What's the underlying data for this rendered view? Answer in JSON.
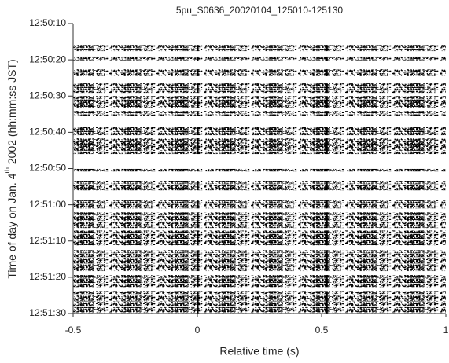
{
  "chart_data": {
    "type": "raster",
    "title": "5pu_S0636_20020104_125010-125130",
    "x_label": "Relative time (s)",
    "y_label": {
      "before": "Time of day on Jan. 4",
      "sup": "th",
      "after": " 2002 (hh:mm:ss JST)"
    },
    "xlim": [
      -0.5,
      1
    ],
    "xticks": [
      -0.5,
      0,
      0.5,
      1
    ],
    "ylim": [
      10,
      90
    ],
    "yticks": [
      {
        "value": 10,
        "label": "12:50:10"
      },
      {
        "value": 20,
        "label": "12:50:20"
      },
      {
        "value": 30,
        "label": "12:50:30"
      },
      {
        "value": 40,
        "label": "12:50:40"
      },
      {
        "value": 50,
        "label": "12:50:50"
      },
      {
        "value": 60,
        "label": "12:51:00"
      },
      {
        "value": 70,
        "label": "12:51:10"
      },
      {
        "value": 80,
        "label": "12:51:20"
      },
      {
        "value": 90,
        "label": "12:51:30"
      }
    ],
    "bands": [
      [
        15.9,
        17.6
      ],
      [
        19.1,
        20.4
      ],
      [
        22.6,
        24.5
      ],
      [
        26.5,
        29.1
      ],
      [
        30.0,
        33.4
      ],
      [
        34.1,
        35.4
      ],
      [
        38.6,
        40.8
      ],
      [
        41.5,
        46.0
      ],
      [
        50.1,
        50.8
      ],
      [
        53.4,
        56.0
      ],
      [
        58.8,
        61.0
      ],
      [
        62.1,
        66.4
      ],
      [
        67.1,
        71.2
      ],
      [
        72.5,
        78.3
      ],
      [
        79.4,
        82.7
      ],
      [
        83.8,
        90.0
      ]
    ],
    "event_times": [
      0,
      0.52
    ],
    "color": "#000000"
  }
}
